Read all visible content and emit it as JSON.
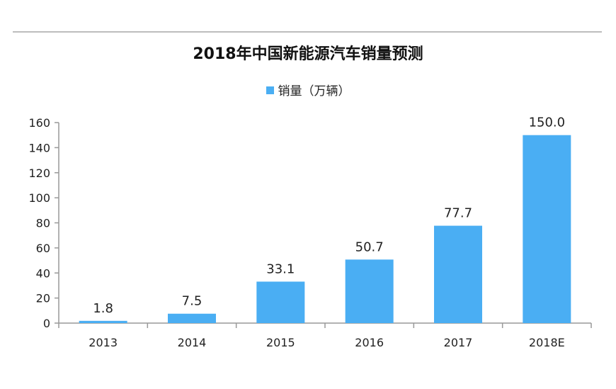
{
  "chart_data": {
    "type": "bar",
    "title": "2018年中国新能源汽车销量预测",
    "legend": {
      "label": "销量（万辆）",
      "position": "top"
    },
    "categories": [
      "2013",
      "2014",
      "2015",
      "2016",
      "2017",
      "2018E"
    ],
    "series": [
      {
        "name": "销量（万辆）",
        "values": [
          1.8,
          7.5,
          33.1,
          50.7,
          77.7,
          150.0
        ]
      }
    ],
    "data_labels": [
      "1.8",
      "7.5",
      "33.1",
      "50.7",
      "77.7",
      "150.0"
    ],
    "ylim": [
      0,
      160
    ],
    "yticks": [
      0,
      20,
      40,
      60,
      80,
      100,
      120,
      140,
      160
    ],
    "xlabel": "",
    "ylabel": "",
    "grid": false,
    "colors": {
      "bar": "#4aaef3",
      "label": "#222222",
      "highlight_label": "#ff3b30"
    },
    "highlight_index": 5
  }
}
